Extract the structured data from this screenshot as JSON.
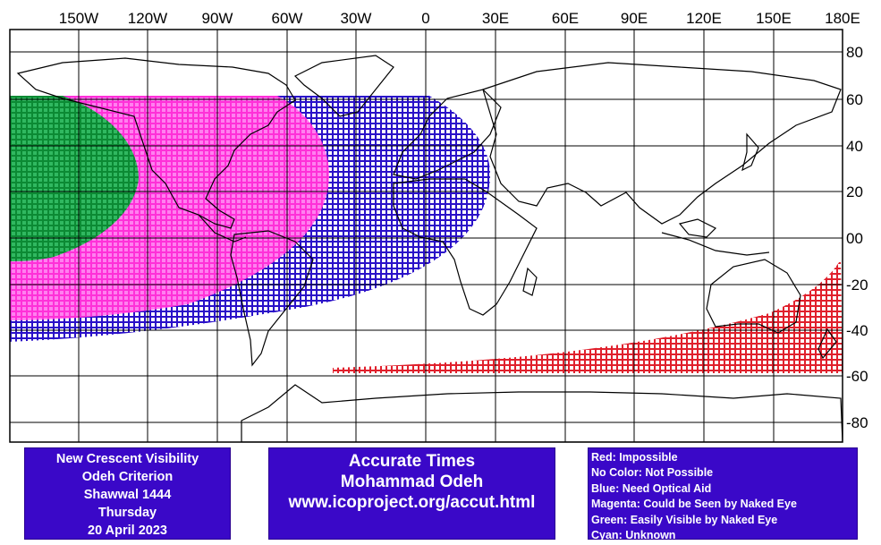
{
  "map": {
    "lon_labels": [
      "150W",
      "120W",
      "90W",
      "60W",
      "30W",
      "0",
      "30E",
      "60E",
      "90E",
      "120E",
      "150E",
      "180E"
    ],
    "lat_labels": [
      "80",
      "60",
      "40",
      "20",
      "00",
      "-20",
      "-40",
      "-60",
      "-80"
    ],
    "colors": {
      "red": "#e0202c",
      "blue": "#2a10c8",
      "magenta": "#ff40e0",
      "green": "#10a040",
      "grid": "#000000",
      "coast": "#000000"
    }
  },
  "info_left": {
    "lines": [
      "New Crescent Visibility",
      "Odeh Criterion",
      "Shawwal 1444",
      "Thursday",
      "20 April 2023"
    ]
  },
  "info_mid": {
    "lines": [
      "Accurate Times",
      "Mohammad Odeh",
      "www.icoproject.org/accut.html"
    ]
  },
  "legend": {
    "items": [
      {
        "text": "Red: Impossible"
      },
      {
        "text": "No Color: Not Possible"
      },
      {
        "text": "Blue: Need Optical Aid"
      },
      {
        "text": "Magenta: Could be Seen by Naked Eye"
      },
      {
        "text": "Green: Easily Visible by Naked Eye"
      },
      {
        "text": "Cyan: Unknown"
      }
    ]
  }
}
